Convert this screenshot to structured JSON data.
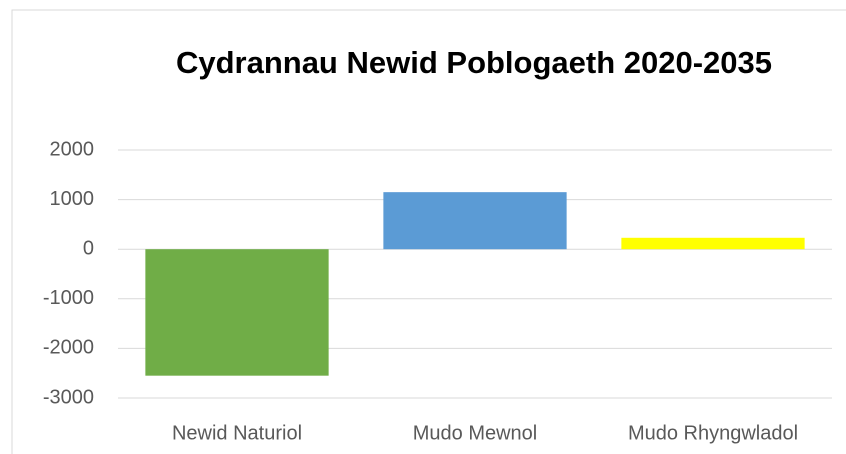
{
  "chart_data": {
    "type": "bar",
    "title": "Cydrannau Newid Poblogaeth 2020-2035",
    "categories": [
      "Newid Naturiol",
      "Mudo Mewnol",
      "Mudo Rhyngwladol"
    ],
    "values": [
      -2550,
      1150,
      230
    ],
    "colors": [
      "#70ad47",
      "#5b9bd5",
      "#ffff00"
    ],
    "ylim": [
      -3000,
      2000
    ],
    "yticks": [
      -3000,
      -2000,
      -1000,
      0,
      1000,
      2000
    ],
    "grid": true
  }
}
